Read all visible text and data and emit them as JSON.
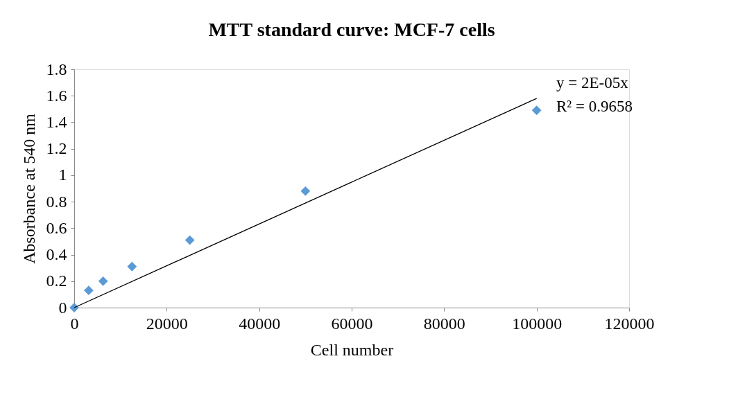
{
  "chart_data": {
    "type": "scatter",
    "title": "MTT standard curve: MCF-7 cells",
    "xlabel": "Cell number",
    "ylabel": "Absorbance at 540 nm",
    "x": [
      0,
      3125,
      6250,
      12500,
      25000,
      50000,
      100000
    ],
    "marker": "diamond",
    "series": [
      {
        "color": "#5b9bd5",
        "values": [
          0,
          0.13,
          0.2,
          0.31,
          0.51,
          0.88,
          1.49
        ]
      },
      {
        "type": "line",
        "color": "#000000",
        "marker": "none",
        "line_style": "solid",
        "x": [
          0,
          100000
        ],
        "values": [
          0,
          1.58
        ]
      }
    ],
    "xlim": [
      0,
      120000
    ],
    "xticks": [
      0,
      20000,
      40000,
      60000,
      80000,
      100000,
      120000
    ],
    "ylim": [
      0,
      1.8
    ],
    "yticks": [
      0,
      0.2,
      0.4,
      0.6,
      0.8,
      1,
      1.2,
      1.4,
      1.6,
      1.8
    ],
    "grid": false,
    "legend": false,
    "annotations": [
      "y = 2E-05x",
      "R² = 0.9658"
    ]
  }
}
